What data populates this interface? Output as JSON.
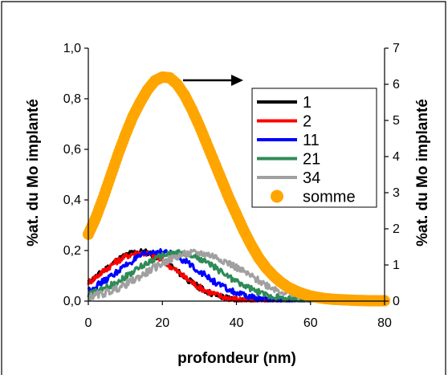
{
  "chart_data": {
    "type": "scatter",
    "xlabel": "profondeur (nm)",
    "ylabel_left": "%at. du Mo implanté",
    "ylabel_right": "%at. du Mo implanté",
    "xlim": [
      0,
      80
    ],
    "ylim_left": [
      0,
      1.0
    ],
    "ylim_right": [
      0,
      7
    ],
    "x_ticks": [
      "0",
      "20",
      "40",
      "60",
      "80"
    ],
    "y_left_ticks": [
      "0,0",
      "0,2",
      "0,4",
      "0,6",
      "0,8",
      "1,0"
    ],
    "y_right_ticks": [
      "0",
      "1",
      "2",
      "3",
      "4",
      "5",
      "6",
      "7"
    ],
    "grid": false,
    "legend_position": "right",
    "annotation": "arrow pointing to right axis for 'somme'",
    "series": [
      {
        "name": "1",
        "color": "#000000",
        "style": "noisy-line",
        "axis": "left",
        "mu": 14,
        "sigma": 10,
        "peak": 0.195,
        "noise": 0.012,
        "x_range": [
          0,
          68
        ]
      },
      {
        "name": "2",
        "color": "#ff0000",
        "style": "noisy-line",
        "axis": "left",
        "mu": 14,
        "sigma": 10.2,
        "peak": 0.19,
        "noise": 0.012,
        "x_range": [
          0,
          68
        ]
      },
      {
        "name": "11",
        "color": "#0000ff",
        "style": "noisy-line",
        "axis": "left",
        "mu": 19,
        "sigma": 11,
        "peak": 0.195,
        "noise": 0.012,
        "x_range": [
          0,
          70
        ]
      },
      {
        "name": "21",
        "color": "#2e8b57",
        "style": "noisy-line",
        "axis": "left",
        "mu": 24,
        "sigma": 12,
        "peak": 0.19,
        "noise": 0.012,
        "x_range": [
          0,
          72
        ]
      },
      {
        "name": "34",
        "color": "#a0a0a0",
        "style": "noisy-line",
        "axis": "left",
        "mu": 29,
        "sigma": 13,
        "peak": 0.19,
        "noise": 0.014,
        "x_range": [
          0,
          75
        ]
      },
      {
        "name": "somme",
        "color": "#ffa500",
        "style": "markers",
        "axis": "right",
        "x": [
          0,
          2,
          4,
          6,
          8,
          10,
          12,
          14,
          16,
          18,
          20,
          22,
          24,
          26,
          28,
          30,
          32,
          34,
          36,
          38,
          40,
          42,
          44,
          46,
          48,
          50,
          52,
          54,
          56,
          58,
          60,
          62,
          64,
          66,
          68,
          70,
          72,
          74,
          76,
          78,
          80
        ],
        "y": [
          1.85,
          2.3,
          2.85,
          3.45,
          4.05,
          4.6,
          5.1,
          5.5,
          5.85,
          6.1,
          6.2,
          6.18,
          6.0,
          5.7,
          5.3,
          4.85,
          4.35,
          3.85,
          3.35,
          2.85,
          2.4,
          1.95,
          1.55,
          1.2,
          0.92,
          0.7,
          0.52,
          0.38,
          0.28,
          0.2,
          0.14,
          0.1,
          0.07,
          0.05,
          0.04,
          0.03,
          0.02,
          0.015,
          0.01,
          0.01,
          0.01
        ]
      }
    ]
  }
}
